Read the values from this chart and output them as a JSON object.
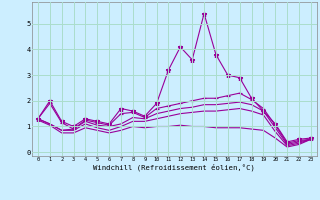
{
  "title": "",
  "xlabel": "Windchill (Refroidissement éolien,°C)",
  "background_color": "#cceeff",
  "grid_color": "#aaddcc",
  "line_color": "#990099",
  "x_ticks": [
    0,
    1,
    2,
    3,
    4,
    5,
    6,
    7,
    8,
    9,
    10,
    11,
    12,
    13,
    14,
    15,
    16,
    17,
    18,
    19,
    20,
    21,
    22,
    23
  ],
  "y_ticks": [
    0,
    1,
    2,
    3,
    4,
    5
  ],
  "xlim": [
    -0.5,
    23.5
  ],
  "ylim": [
    -0.15,
    5.85
  ],
  "lines": [
    {
      "x": [
        0,
        1,
        2,
        3,
        4,
        5,
        6,
        7,
        8,
        9,
        10,
        11,
        12,
        13,
        14,
        15,
        16,
        17,
        18,
        19,
        20,
        21,
        22,
        23
      ],
      "y": [
        1.3,
        2.0,
        1.2,
        1.0,
        1.3,
        1.2,
        1.1,
        1.7,
        1.6,
        1.4,
        1.9,
        3.2,
        4.1,
        3.6,
        5.4,
        3.8,
        3.0,
        2.9,
        2.1,
        1.6,
        1.1,
        0.4,
        0.5,
        0.55
      ],
      "marker": "*",
      "markersize": 3.5,
      "linewidth": 0.8
    },
    {
      "x": [
        0,
        1,
        2,
        3,
        4,
        5,
        6,
        7,
        8,
        9,
        10,
        11,
        12,
        13,
        14,
        15,
        16,
        17,
        18,
        19,
        20,
        21,
        22,
        23
      ],
      "y": [
        1.3,
        1.9,
        1.15,
        0.9,
        1.25,
        1.15,
        1.05,
        1.5,
        1.55,
        1.35,
        1.7,
        1.8,
        1.9,
        2.0,
        2.1,
        2.1,
        2.2,
        2.3,
        2.05,
        1.7,
        1.05,
        0.35,
        0.45,
        0.5
      ],
      "marker": "+",
      "markersize": 3.5,
      "linewidth": 0.8
    },
    {
      "x": [
        0,
        1,
        2,
        3,
        4,
        5,
        6,
        7,
        8,
        9,
        10,
        11,
        12,
        13,
        14,
        15,
        16,
        17,
        18,
        19,
        20,
        21,
        22,
        23
      ],
      "y": [
        1.3,
        1.1,
        0.85,
        0.9,
        1.2,
        1.05,
        1.0,
        1.1,
        1.35,
        1.3,
        1.5,
        1.6,
        1.7,
        1.75,
        1.85,
        1.85,
        1.9,
        1.95,
        1.85,
        1.6,
        0.95,
        0.3,
        0.4,
        0.5
      ],
      "marker": "",
      "markersize": 0,
      "linewidth": 0.8
    },
    {
      "x": [
        0,
        1,
        2,
        3,
        4,
        5,
        6,
        7,
        8,
        9,
        10,
        11,
        12,
        13,
        14,
        15,
        16,
        17,
        18,
        19,
        20,
        21,
        22,
        23
      ],
      "y": [
        1.3,
        1.1,
        0.85,
        0.85,
        1.1,
        0.95,
        0.85,
        1.0,
        1.2,
        1.2,
        1.3,
        1.4,
        1.5,
        1.55,
        1.6,
        1.6,
        1.65,
        1.7,
        1.6,
        1.45,
        0.8,
        0.25,
        0.35,
        0.5
      ],
      "marker": "",
      "markersize": 0,
      "linewidth": 0.8
    },
    {
      "x": [
        0,
        1,
        2,
        3,
        4,
        5,
        6,
        7,
        8,
        9,
        10,
        11,
        12,
        13,
        14,
        15,
        16,
        17,
        18,
        19,
        20,
        21,
        22,
        23
      ],
      "y": [
        1.25,
        1.05,
        0.75,
        0.75,
        0.95,
        0.85,
        0.75,
        0.85,
        1.0,
        0.95,
        1.0,
        1.0,
        1.05,
        1.0,
        1.0,
        0.95,
        0.95,
        0.95,
        0.9,
        0.85,
        0.55,
        0.2,
        0.3,
        0.5
      ],
      "marker": "",
      "markersize": 0,
      "linewidth": 0.8
    }
  ]
}
